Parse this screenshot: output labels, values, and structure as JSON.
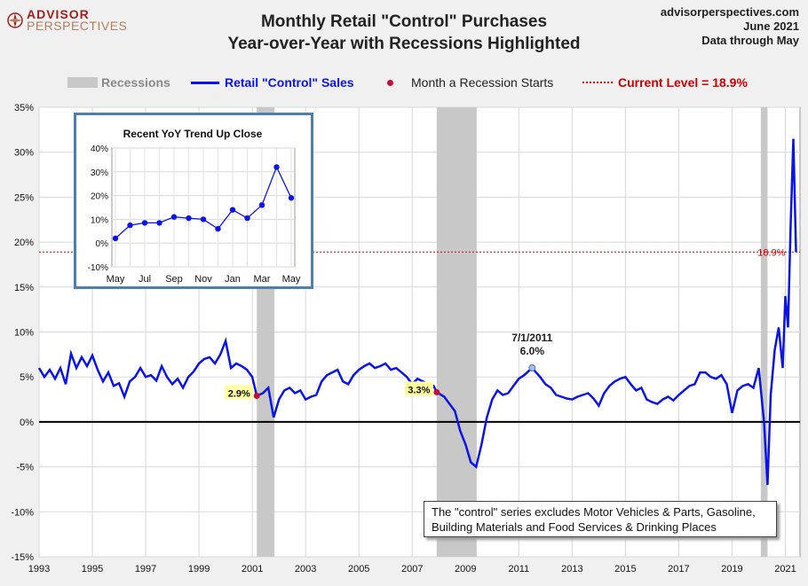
{
  "logo": {
    "line1": "ADVISOR",
    "line2": "PERSPECTIVES"
  },
  "header": {
    "title_line1": "Monthly Retail \"Control\" Purchases",
    "title_line2": "Year-over-Year with Recessions Highlighted"
  },
  "source": {
    "site": "advisorperspectives.com",
    "date": "June 2021",
    "through": "Data through May"
  },
  "legend": {
    "recessions": "Recessions",
    "series": "Retail \"Control\" Sales",
    "recession_start": "Month a Recession Starts",
    "current": "Current Level = 18.9%"
  },
  "note": {
    "line1": "The \"control\" series excludes Motor Vehicles & Parts, Gasoline,",
    "line2": "Building Materials and Food Services & Drinking Places"
  },
  "colors": {
    "series": "#0a14e6",
    "recession": "#c8c8c8",
    "current": "#cc0000",
    "start_marker": "#c0103a",
    "inset_border": "#4a7fb0"
  },
  "chart_data": [
    {
      "type": "line",
      "ylim": [
        -15,
        35
      ],
      "xlim": [
        1993,
        2021.7
      ],
      "y_ticks": [
        "35%",
        "30%",
        "25%",
        "20%",
        "15%",
        "10%",
        "5%",
        "0%",
        "-5%",
        "-10%",
        "-15%"
      ],
      "x_ticks": [
        "1993",
        "1995",
        "1997",
        "1999",
        "2001",
        "2003",
        "2005",
        "2007",
        "2009",
        "2011",
        "2013",
        "2015",
        "2017",
        "2019",
        "2021"
      ],
      "recessions": [
        [
          2001.17,
          2001.83
        ],
        [
          2007.92,
          2009.42
        ],
        [
          2020.08,
          2020.33
        ]
      ],
      "recession_starts": [
        {
          "x": 2001.17,
          "y": 2.9,
          "label": "2.9%"
        },
        {
          "x": 2007.92,
          "y": 3.3,
          "label": "3.3%"
        }
      ],
      "annotation": {
        "x": 2011.5,
        "y": 6.0,
        "label_line1": "7/1/2011",
        "label_line2": "6.0%"
      },
      "current_level": {
        "value": 18.9,
        "label": "18.9%"
      },
      "series": [
        {
          "name": "Retail \"Control\" Sales",
          "points": [
            [
              1993.0,
              6.0
            ],
            [
              1993.2,
              5.0
            ],
            [
              1993.4,
              5.8
            ],
            [
              1993.6,
              4.8
            ],
            [
              1993.8,
              6.0
            ],
            [
              1994.0,
              4.2
            ],
            [
              1994.2,
              7.6
            ],
            [
              1994.4,
              6.0
            ],
            [
              1994.6,
              7.2
            ],
            [
              1994.8,
              6.2
            ],
            [
              1995.0,
              7.4
            ],
            [
              1995.2,
              5.8
            ],
            [
              1995.4,
              4.5
            ],
            [
              1995.6,
              5.5
            ],
            [
              1995.8,
              4.0
            ],
            [
              1996.0,
              4.3
            ],
            [
              1996.2,
              2.8
            ],
            [
              1996.4,
              4.5
            ],
            [
              1996.6,
              5.0
            ],
            [
              1996.8,
              6.0
            ],
            [
              1997.0,
              5.0
            ],
            [
              1997.2,
              5.2
            ],
            [
              1997.4,
              4.6
            ],
            [
              1997.6,
              6.2
            ],
            [
              1997.8,
              5.0
            ],
            [
              1998.0,
              4.2
            ],
            [
              1998.2,
              4.8
            ],
            [
              1998.4,
              3.8
            ],
            [
              1998.6,
              5.0
            ],
            [
              1998.8,
              5.6
            ],
            [
              1999.0,
              6.5
            ],
            [
              1999.2,
              7.0
            ],
            [
              1999.4,
              7.2
            ],
            [
              1999.6,
              6.5
            ],
            [
              1999.8,
              7.5
            ],
            [
              2000.0,
              9.0
            ],
            [
              2000.2,
              6.0
            ],
            [
              2000.4,
              6.5
            ],
            [
              2000.6,
              6.2
            ],
            [
              2000.8,
              5.8
            ],
            [
              2001.0,
              5.0
            ],
            [
              2001.17,
              2.9
            ],
            [
              2001.4,
              3.2
            ],
            [
              2001.6,
              3.8
            ],
            [
              2001.8,
              0.5
            ],
            [
              2002.0,
              2.5
            ],
            [
              2002.2,
              3.5
            ],
            [
              2002.4,
              3.8
            ],
            [
              2002.6,
              3.2
            ],
            [
              2002.8,
              3.5
            ],
            [
              2003.0,
              2.5
            ],
            [
              2003.2,
              2.8
            ],
            [
              2003.4,
              3.0
            ],
            [
              2003.6,
              4.5
            ],
            [
              2003.8,
              5.2
            ],
            [
              2004.0,
              5.5
            ],
            [
              2004.2,
              5.8
            ],
            [
              2004.4,
              4.5
            ],
            [
              2004.6,
              4.2
            ],
            [
              2004.8,
              5.2
            ],
            [
              2005.0,
              5.8
            ],
            [
              2005.2,
              6.2
            ],
            [
              2005.4,
              6.5
            ],
            [
              2005.6,
              6.0
            ],
            [
              2005.8,
              6.2
            ],
            [
              2006.0,
              6.5
            ],
            [
              2006.2,
              5.8
            ],
            [
              2006.4,
              6.0
            ],
            [
              2006.6,
              5.5
            ],
            [
              2006.8,
              5.0
            ],
            [
              2007.0,
              4.2
            ],
            [
              2007.2,
              4.8
            ],
            [
              2007.4,
              4.5
            ],
            [
              2007.6,
              4.2
            ],
            [
              2007.8,
              4.0
            ],
            [
              2007.92,
              3.3
            ],
            [
              2008.2,
              2.8
            ],
            [
              2008.4,
              2.0
            ],
            [
              2008.6,
              1.2
            ],
            [
              2008.8,
              -1.0
            ],
            [
              2009.0,
              -2.5
            ],
            [
              2009.2,
              -4.5
            ],
            [
              2009.4,
              -5.0
            ],
            [
              2009.6,
              -2.5
            ],
            [
              2009.8,
              0.5
            ],
            [
              2010.0,
              2.5
            ],
            [
              2010.2,
              3.5
            ],
            [
              2010.4,
              3.0
            ],
            [
              2010.6,
              3.2
            ],
            [
              2010.8,
              4.0
            ],
            [
              2011.0,
              4.8
            ],
            [
              2011.2,
              5.2
            ],
            [
              2011.5,
              6.0
            ],
            [
              2011.8,
              5.0
            ],
            [
              2012.0,
              4.2
            ],
            [
              2012.2,
              3.8
            ],
            [
              2012.4,
              3.0
            ],
            [
              2012.6,
              2.8
            ],
            [
              2012.8,
              2.6
            ],
            [
              2013.0,
              2.5
            ],
            [
              2013.2,
              2.8
            ],
            [
              2013.4,
              3.0
            ],
            [
              2013.6,
              3.2
            ],
            [
              2013.8,
              2.6
            ],
            [
              2014.0,
              1.8
            ],
            [
              2014.2,
              3.2
            ],
            [
              2014.4,
              4.0
            ],
            [
              2014.6,
              4.5
            ],
            [
              2014.8,
              4.8
            ],
            [
              2015.0,
              5.0
            ],
            [
              2015.2,
              4.2
            ],
            [
              2015.4,
              3.5
            ],
            [
              2015.6,
              3.8
            ],
            [
              2015.8,
              2.5
            ],
            [
              2016.0,
              2.2
            ],
            [
              2016.2,
              2.0
            ],
            [
              2016.4,
              2.5
            ],
            [
              2016.6,
              2.8
            ],
            [
              2016.8,
              2.4
            ],
            [
              2017.0,
              3.0
            ],
            [
              2017.2,
              3.5
            ],
            [
              2017.4,
              4.0
            ],
            [
              2017.6,
              4.2
            ],
            [
              2017.8,
              5.5
            ],
            [
              2018.0,
              5.5
            ],
            [
              2018.2,
              5.0
            ],
            [
              2018.4,
              4.8
            ],
            [
              2018.6,
              5.2
            ],
            [
              2018.8,
              4.2
            ],
            [
              2019.0,
              1.0
            ],
            [
              2019.2,
              3.5
            ],
            [
              2019.4,
              4.0
            ],
            [
              2019.6,
              4.2
            ],
            [
              2019.8,
              3.8
            ],
            [
              2020.0,
              6.0
            ],
            [
              2020.2,
              0.0
            ],
            [
              2020.33,
              -7.0
            ],
            [
              2020.45,
              3.0
            ],
            [
              2020.6,
              8.0
            ],
            [
              2020.75,
              10.5
            ],
            [
              2020.9,
              6.0
            ],
            [
              2021.0,
              14.0
            ],
            [
              2021.1,
              10.5
            ],
            [
              2021.2,
              22.0
            ],
            [
              2021.3,
              31.5
            ],
            [
              2021.4,
              18.9
            ]
          ]
        }
      ]
    },
    {
      "type": "line",
      "title": "Recent  YoY Trend Up Close",
      "ylim": [
        -10,
        40
      ],
      "y_ticks": [
        "40%",
        "30%",
        "20%",
        "10%",
        "0%",
        "-10%"
      ],
      "x_ticks": [
        "May",
        "Jul",
        "Sep",
        "Nov",
        "Jan",
        "Mar",
        "May"
      ],
      "series": [
        {
          "name": "",
          "values": [
            2.0,
            7.5,
            8.5,
            8.5,
            11.0,
            10.5,
            10.0,
            6.0,
            14.0,
            10.5,
            16.0,
            32.0,
            19.0
          ]
        }
      ]
    }
  ]
}
